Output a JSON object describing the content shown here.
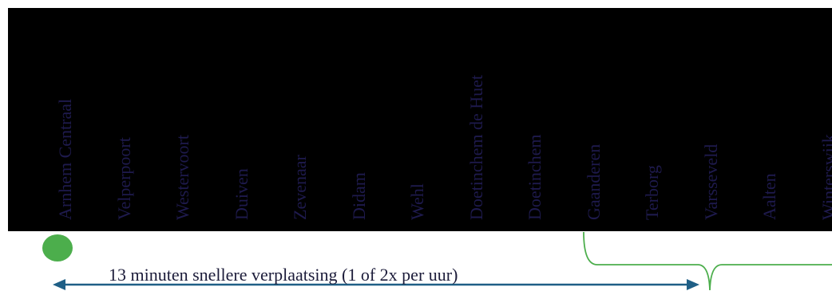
{
  "stations": [
    "Arnhem Centraal",
    "Velperpoort",
    "Westervoort",
    "Duiven",
    "Zevenaar",
    "Didam",
    "Wehl",
    "Doetinchem de Huet",
    "Doetinchem",
    "Gaanderen",
    "Terborg",
    "Varsseveld",
    "Aalten",
    "Winterswijk"
  ],
  "caption": "13 minuten snellere verplaatsing (1 of 2x per uur)",
  "colors": {
    "background": "#000000",
    "station_text": "#1e1a4d",
    "marker": "#4cae4c",
    "arrow": "#1f5f86",
    "brace": "#4cae4c",
    "caption_text": "#1c1c3a"
  }
}
